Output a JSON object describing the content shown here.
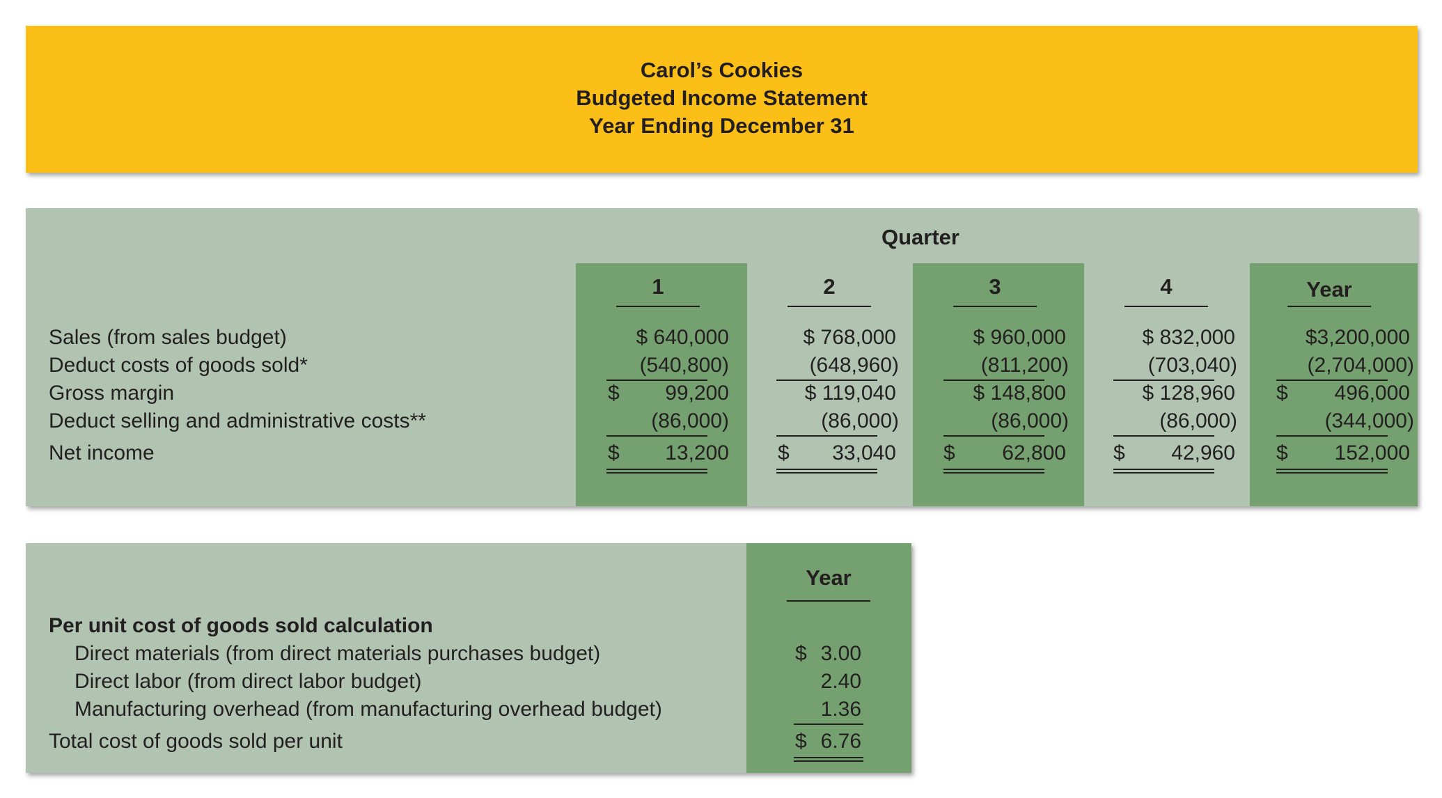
{
  "header": {
    "company": "Carol’s Cookies",
    "statement": "Budgeted Income Statement",
    "period": "Year Ending December 31"
  },
  "income_statement": {
    "group_header": "Quarter",
    "columns": [
      "1",
      "2",
      "3",
      "4",
      "Year"
    ],
    "rows": [
      {
        "label": "Sales (from sales budget)",
        "values": [
          "$ 640,000",
          "$ 768,000",
          "$ 960,000",
          "$ 832,000",
          "$3,200,000"
        ]
      },
      {
        "label": "Deduct costs of goods sold*",
        "values": [
          "(540,800)",
          "(648,960)",
          "(811,200)",
          "(703,040)",
          "(2,704,000)"
        ]
      },
      {
        "label": "Gross margin",
        "values": [
          "99,200",
          "$ 119,040",
          "$ 148,800",
          "$ 128,960",
          "496,000"
        ]
      },
      {
        "label": "Deduct selling and administrative costs**",
        "values": [
          "(86,000)",
          "(86,000)",
          "(86,000)",
          "(86,000)",
          "(344,000)"
        ]
      },
      {
        "label": "Net income",
        "values": [
          "13,200",
          "33,040",
          "62,800",
          "42,960",
          "152,000"
        ]
      }
    ],
    "currency_symbol": "$"
  },
  "unit_cost": {
    "column_header": "Year",
    "title": "Per unit cost of goods sold calculation",
    "rows": [
      {
        "label": "Direct materials (from direct materials purchases budget)",
        "value": "3.00"
      },
      {
        "label": "Direct labor (from direct labor budget)",
        "value": "2.40"
      },
      {
        "label": "Manufacturing overhead (from manufacturing overhead budget)",
        "value": "1.36"
      }
    ],
    "total": {
      "label": "Total cost of goods sold per unit",
      "value": "6.76"
    },
    "currency_symbol": "$"
  },
  "colors": {
    "header_bg": "#fcbf18",
    "panel_bg": "#b1c4b1",
    "column_dark": "#75a06f",
    "text": "#231f20"
  }
}
